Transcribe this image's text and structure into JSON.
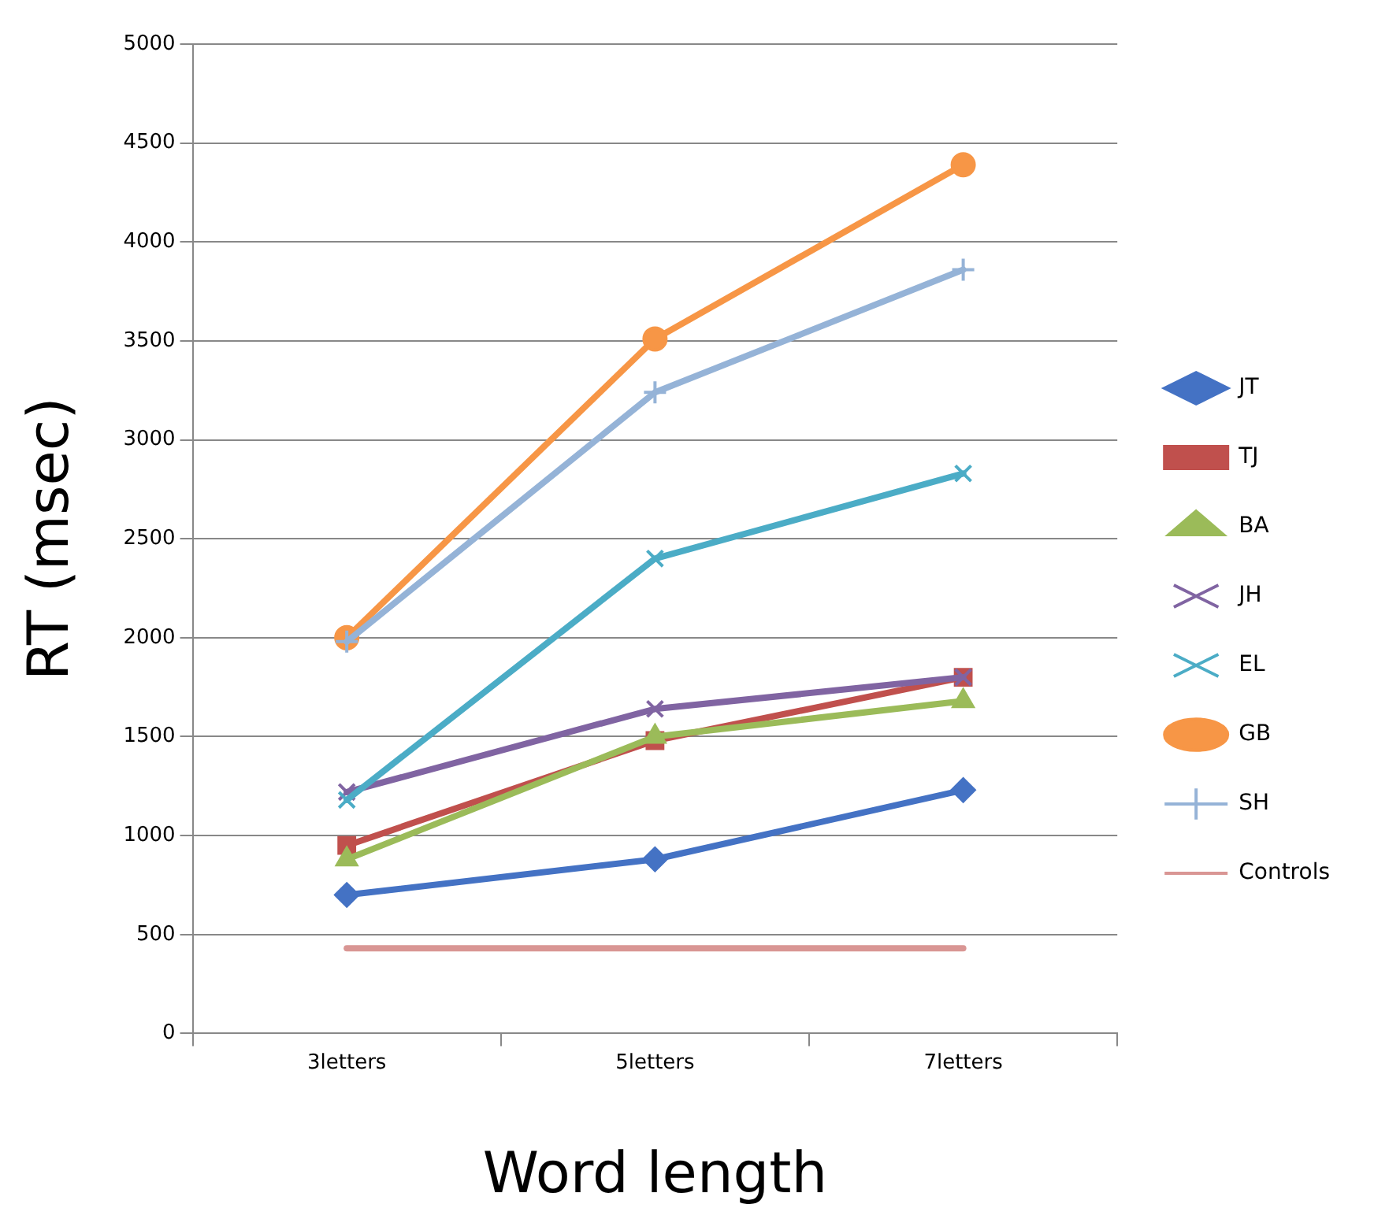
{
  "chart_data": {
    "type": "line",
    "xlabel": "Word length",
    "ylabel": "RT (msec)",
    "categories": [
      "3letters",
      "5letters",
      "7letters"
    ],
    "series": [
      {
        "name": "JT",
        "color": "#4472c4",
        "marker": "diamond",
        "values": [
          700,
          880,
          1230
        ]
      },
      {
        "name": "TJ",
        "color": "#c0504d",
        "marker": "square",
        "values": [
          950,
          1480,
          1800
        ]
      },
      {
        "name": "BA",
        "color": "#9bbb59",
        "marker": "triangle",
        "values": [
          880,
          1500,
          1680
        ]
      },
      {
        "name": "JH",
        "color": "#8064a2",
        "marker": "cross",
        "values": [
          1220,
          1640,
          1800
        ]
      },
      {
        "name": "EL",
        "color": "#4bacc6",
        "marker": "cross",
        "values": [
          1180,
          2400,
          2830
        ]
      },
      {
        "name": "GB",
        "color": "#f79646",
        "marker": "circle",
        "values": [
          2000,
          3510,
          4390
        ]
      },
      {
        "name": "SH",
        "color": "#95b3d7",
        "marker": "plus",
        "values": [
          1980,
          3240,
          3860
        ]
      },
      {
        "name": "Controls",
        "color": "#d99694",
        "marker": "none",
        "values": [
          430,
          430,
          430
        ]
      }
    ],
    "ylim": [
      0,
      5000
    ],
    "yticks": [
      0,
      500,
      1000,
      1500,
      2000,
      2500,
      3000,
      3500,
      4000,
      4500,
      5000
    ],
    "grid": "y",
    "legend": "right",
    "line_style": "solid"
  }
}
